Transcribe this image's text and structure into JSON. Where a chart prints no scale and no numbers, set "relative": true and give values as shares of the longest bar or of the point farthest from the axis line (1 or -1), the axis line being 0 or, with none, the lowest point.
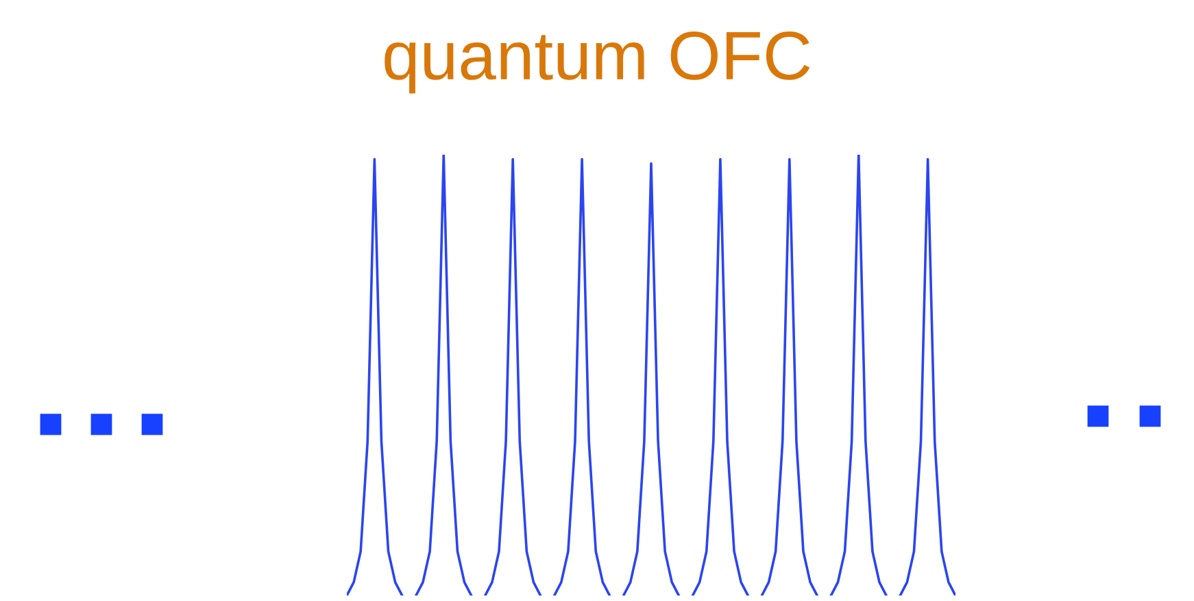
{
  "chart_data": {
    "type": "line",
    "title": "quantum OFC",
    "relative": true,
    "marker": "none",
    "line_style": "solid",
    "categories": [
      null,
      null,
      null,
      null,
      null,
      null,
      null,
      null,
      null,
      null,
      null,
      null,
      null,
      null,
      null,
      null,
      null,
      null,
      null,
      null,
      null,
      null,
      null,
      null,
      null,
      null,
      null,
      null,
      null,
      null,
      null,
      null,
      null,
      null,
      null,
      null,
      null,
      null,
      null,
      null,
      null,
      null,
      null,
      null,
      null,
      null,
      null,
      null,
      null,
      null,
      null,
      null,
      null,
      null,
      null,
      null,
      null,
      null,
      null,
      null,
      null,
      null,
      null,
      null,
      null,
      null,
      null,
      null,
      null,
      null,
      null,
      null,
      null,
      null,
      null,
      null,
      null,
      null,
      null,
      null,
      null,
      null,
      null,
      null,
      null,
      null,
      null,
      null,
      null
    ],
    "series": [
      {
        "color": "#2b45f0",
        "values": [
          0,
          0.03,
          0.1,
          0.35,
          0.99,
          0.35,
          0.1,
          0.03,
          0,
          null,
          null,
          null,
          null,
          null,
          null,
          null,
          null,
          null,
          null,
          null,
          null,
          null,
          null,
          null,
          null,
          null,
          null,
          null,
          null,
          null,
          null,
          null,
          null,
          null,
          null,
          null,
          null,
          null,
          null,
          null,
          null,
          null,
          null,
          null,
          null,
          null,
          null,
          null,
          null,
          null,
          null,
          null,
          null,
          null,
          null,
          null,
          null,
          null,
          null,
          null,
          null,
          null,
          null,
          null,
          null,
          null,
          null,
          null,
          null,
          null,
          null,
          null,
          null,
          null,
          null,
          null,
          null,
          null,
          null,
          null,
          null,
          null,
          null,
          null,
          null,
          null,
          null,
          null,
          null
        ]
      },
      {
        "color": "#2b45f0",
        "values": [
          null,
          null,
          null,
          null,
          null,
          null,
          null,
          null,
          null,
          null,
          0,
          0.03,
          0.1,
          0.35,
          1,
          0.35,
          0.1,
          0.03,
          0,
          null,
          null,
          null,
          null,
          null,
          null,
          null,
          null,
          null,
          null,
          null,
          null,
          null,
          null,
          null,
          null,
          null,
          null,
          null,
          null,
          null,
          null,
          null,
          null,
          null,
          null,
          null,
          null,
          null,
          null,
          null,
          null,
          null,
          null,
          null,
          null,
          null,
          null,
          null,
          null,
          null,
          null,
          null,
          null,
          null,
          null,
          null,
          null,
          null,
          null,
          null,
          null,
          null,
          null,
          null,
          null,
          null,
          null,
          null,
          null,
          null,
          null,
          null,
          null,
          null,
          null,
          null,
          null,
          null,
          null
        ]
      },
      {
        "color": "#2b45f0",
        "values": [
          null,
          null,
          null,
          null,
          null,
          null,
          null,
          null,
          null,
          null,
          null,
          null,
          null,
          null,
          null,
          null,
          null,
          null,
          null,
          null,
          0,
          0.03,
          0.1,
          0.35,
          0.99,
          0.35,
          0.1,
          0.03,
          0,
          null,
          null,
          null,
          null,
          null,
          null,
          null,
          null,
          null,
          null,
          null,
          null,
          null,
          null,
          null,
          null,
          null,
          null,
          null,
          null,
          null,
          null,
          null,
          null,
          null,
          null,
          null,
          null,
          null,
          null,
          null,
          null,
          null,
          null,
          null,
          null,
          null,
          null,
          null,
          null,
          null,
          null,
          null,
          null,
          null,
          null,
          null,
          null,
          null,
          null,
          null,
          null,
          null,
          null,
          null,
          null,
          null,
          null,
          null,
          null
        ]
      },
      {
        "color": "#2b45f0",
        "values": [
          null,
          null,
          null,
          null,
          null,
          null,
          null,
          null,
          null,
          null,
          null,
          null,
          null,
          null,
          null,
          null,
          null,
          null,
          null,
          null,
          null,
          null,
          null,
          null,
          null,
          null,
          null,
          null,
          null,
          null,
          0,
          0.03,
          0.1,
          0.35,
          0.99,
          0.35,
          0.1,
          0.03,
          0,
          null,
          null,
          null,
          null,
          null,
          null,
          null,
          null,
          null,
          null,
          null,
          null,
          null,
          null,
          null,
          null,
          null,
          null,
          null,
          null,
          null,
          null,
          null,
          null,
          null,
          null,
          null,
          null,
          null,
          null,
          null,
          null,
          null,
          null,
          null,
          null,
          null,
          null,
          null,
          null,
          null,
          null,
          null,
          null,
          null,
          null,
          null,
          null,
          null,
          null
        ]
      },
      {
        "color": "#2b45f0",
        "values": [
          null,
          null,
          null,
          null,
          null,
          null,
          null,
          null,
          null,
          null,
          null,
          null,
          null,
          null,
          null,
          null,
          null,
          null,
          null,
          null,
          null,
          null,
          null,
          null,
          null,
          null,
          null,
          null,
          null,
          null,
          null,
          null,
          null,
          null,
          null,
          null,
          null,
          null,
          null,
          null,
          0,
          0.03,
          0.1,
          0.35,
          0.98,
          0.35,
          0.1,
          0.03,
          0,
          null,
          null,
          null,
          null,
          null,
          null,
          null,
          null,
          null,
          null,
          null,
          null,
          null,
          null,
          null,
          null,
          null,
          null,
          null,
          null,
          null,
          null,
          null,
          null,
          null,
          null,
          null,
          null,
          null,
          null,
          null,
          null,
          null,
          null,
          null,
          null,
          null,
          null,
          null,
          null
        ]
      },
      {
        "color": "#2b45f0",
        "values": [
          null,
          null,
          null,
          null,
          null,
          null,
          null,
          null,
          null,
          null,
          null,
          null,
          null,
          null,
          null,
          null,
          null,
          null,
          null,
          null,
          null,
          null,
          null,
          null,
          null,
          null,
          null,
          null,
          null,
          null,
          null,
          null,
          null,
          null,
          null,
          null,
          null,
          null,
          null,
          null,
          null,
          null,
          null,
          null,
          null,
          null,
          null,
          null,
          null,
          null,
          0,
          0.03,
          0.1,
          0.35,
          0.99,
          0.35,
          0.1,
          0.03,
          0,
          null,
          null,
          null,
          null,
          null,
          null,
          null,
          null,
          null,
          null,
          null,
          null,
          null,
          null,
          null,
          null,
          null,
          null,
          null,
          null,
          null,
          null,
          null,
          null,
          null,
          null,
          null,
          null,
          null,
          null
        ]
      },
      {
        "color": "#2b45f0",
        "values": [
          null,
          null,
          null,
          null,
          null,
          null,
          null,
          null,
          null,
          null,
          null,
          null,
          null,
          null,
          null,
          null,
          null,
          null,
          null,
          null,
          null,
          null,
          null,
          null,
          null,
          null,
          null,
          null,
          null,
          null,
          null,
          null,
          null,
          null,
          null,
          null,
          null,
          null,
          null,
          null,
          null,
          null,
          null,
          null,
          null,
          null,
          null,
          null,
          null,
          null,
          null,
          null,
          null,
          null,
          null,
          null,
          null,
          null,
          null,
          null,
          0,
          0.03,
          0.1,
          0.35,
          0.99,
          0.35,
          0.1,
          0.03,
          0,
          null,
          null,
          null,
          null,
          null,
          null,
          null,
          null,
          null,
          null,
          null,
          null,
          null,
          null,
          null,
          null,
          null,
          null,
          null,
          null
        ]
      },
      {
        "color": "#2b45f0",
        "values": [
          null,
          null,
          null,
          null,
          null,
          null,
          null,
          null,
          null,
          null,
          null,
          null,
          null,
          null,
          null,
          null,
          null,
          null,
          null,
          null,
          null,
          null,
          null,
          null,
          null,
          null,
          null,
          null,
          null,
          null,
          null,
          null,
          null,
          null,
          null,
          null,
          null,
          null,
          null,
          null,
          null,
          null,
          null,
          null,
          null,
          null,
          null,
          null,
          null,
          null,
          null,
          null,
          null,
          null,
          null,
          null,
          null,
          null,
          null,
          null,
          null,
          null,
          null,
          null,
          null,
          null,
          null,
          null,
          null,
          null,
          0,
          0.03,
          0.1,
          0.35,
          1,
          0.35,
          0.1,
          0.03,
          0,
          null,
          null,
          null,
          null,
          null,
          null,
          null,
          null,
          null,
          null
        ]
      },
      {
        "color": "#2b45f0",
        "values": [
          null,
          null,
          null,
          null,
          null,
          null,
          null,
          null,
          null,
          null,
          null,
          null,
          null,
          null,
          null,
          null,
          null,
          null,
          null,
          null,
          null,
          null,
          null,
          null,
          null,
          null,
          null,
          null,
          null,
          null,
          null,
          null,
          null,
          null,
          null,
          null,
          null,
          null,
          null,
          null,
          null,
          null,
          null,
          null,
          null,
          null,
          null,
          null,
          null,
          null,
          null,
          null,
          null,
          null,
          null,
          null,
          null,
          null,
          null,
          null,
          null,
          null,
          null,
          null,
          null,
          null,
          null,
          null,
          null,
          null,
          null,
          null,
          null,
          null,
          null,
          null,
          null,
          null,
          null,
          null,
          0,
          0.03,
          0.1,
          0.35,
          0.99,
          0.35,
          0.1,
          0.03,
          0
        ]
      }
    ]
  }
}
